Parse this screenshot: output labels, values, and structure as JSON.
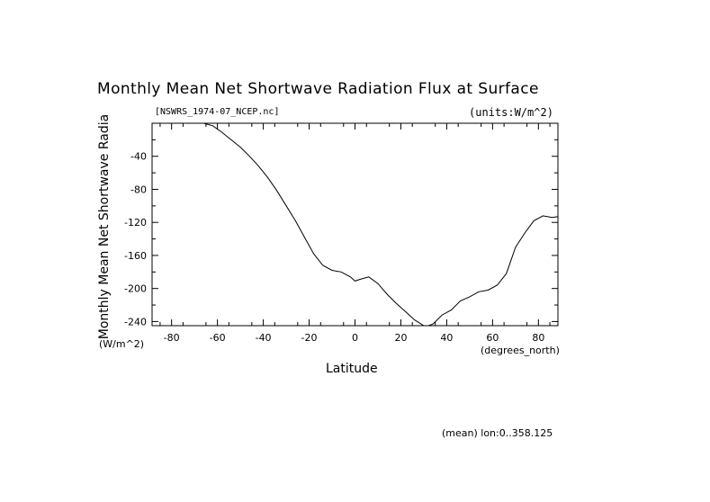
{
  "chart_data": {
    "type": "line",
    "title": "Monthly Mean Net Shortwave Radiation Flux at Surface",
    "subtitle_left": "[NSWRS_1974-07_NCEP.nc]",
    "subtitle_right": "(units:W/m^2)",
    "xlabel": "Latitude",
    "xunits": "(degrees_north)",
    "ylabel": "Monthly Mean Net Shortwave Radia",
    "yunits": "(W/m^2)",
    "footer": "(mean) lon:0..358.125",
    "xlim": [
      -88.5,
      88.5
    ],
    "ylim": [
      -245,
      0
    ],
    "x_ticks": [
      -80,
      -60,
      -40,
      -20,
      0,
      20,
      40,
      60,
      80
    ],
    "y_ticks": [
      -40,
      -80,
      -120,
      -160,
      -200,
      -240
    ],
    "x_tick_labels": [
      "-80",
      "-60",
      "-40",
      "-20",
      "0",
      "20",
      "40",
      "60",
      "80"
    ],
    "y_tick_labels": [
      "-40",
      "-80",
      "-120",
      "-160",
      "-200",
      "-240"
    ],
    "grid": false,
    "series": [
      {
        "x": [
          -66,
          -62,
          -58,
          -54,
          -50,
          -46,
          -42,
          -38,
          -34,
          -30,
          -26,
          -22,
          -18,
          -14,
          -10,
          -6,
          -2,
          0,
          2,
          6,
          10,
          14,
          18,
          22,
          26,
          30,
          32,
          34,
          38,
          42,
          46,
          50,
          54,
          58,
          62,
          66,
          70,
          74,
          78,
          82,
          86,
          88.5
        ],
        "y": [
          0,
          -3,
          -11,
          -20,
          -29,
          -40,
          -52,
          -66,
          -82,
          -100,
          -118,
          -138,
          -158,
          -172,
          -178,
          -180,
          -186,
          -191,
          -189,
          -186,
          -194,
          -207,
          -218,
          -228,
          -238,
          -245,
          -247,
          -243,
          -232,
          -226,
          -215,
          -210,
          -204,
          -202,
          -196,
          -182,
          -150,
          -133,
          -118,
          -112,
          -114,
          -113
        ]
      }
    ]
  }
}
